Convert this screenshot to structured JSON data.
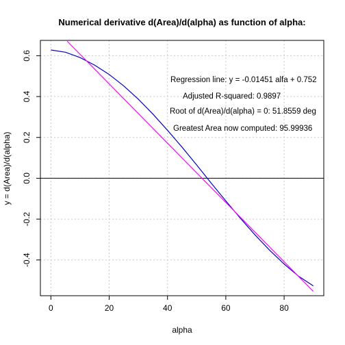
{
  "chart_data": {
    "type": "line",
    "title": "Numerical derivative d(Area)/d(alpha) as function of alpha:",
    "xlabel": "alpha",
    "ylabel": "y = d(Area)/d(alpha)",
    "xlim": [
      -3.6,
      93.6
    ],
    "ylim": [
      -0.575,
      0.675
    ],
    "x_ticks": [
      0,
      20,
      40,
      60,
      80
    ],
    "y_ticks": [
      -0.4,
      -0.2,
      0.0,
      0.2,
      0.4,
      0.6
    ],
    "x_tick_labels": [
      "0",
      "20",
      "40",
      "60",
      "80"
    ],
    "y_tick_labels": [
      "-0.4",
      "-0.2",
      "0.0",
      "0.2",
      "0.4",
      "0.6"
    ],
    "grid": true,
    "series": [
      {
        "color": "#0000cc",
        "x": [
          0,
          5,
          10,
          15,
          20,
          25,
          30,
          35,
          40,
          45,
          50,
          55,
          60,
          65,
          70,
          75,
          80,
          85,
          90
        ],
        "y": [
          0.628,
          0.617,
          0.591,
          0.554,
          0.508,
          0.452,
          0.387,
          0.314,
          0.235,
          0.152,
          0.065,
          -0.024,
          -0.111,
          -0.196,
          -0.277,
          -0.352,
          -0.42,
          -0.48,
          -0.527
        ]
      },
      {
        "color": "#ff00ff",
        "x": [
          5.6,
          90
        ],
        "y": [
          0.6708,
          -0.5538
        ]
      }
    ],
    "hline": {
      "y": 0,
      "color": "#000000"
    },
    "annotations": [
      "Regression line: y = -0.01451 alfa + 0.752",
      "Adjusted R-squared: 0.9897",
      "Root of d(Area)/d(alpha) = 0: 51.8559 deg",
      "Greatest Area now computed:   95.99936"
    ]
  }
}
